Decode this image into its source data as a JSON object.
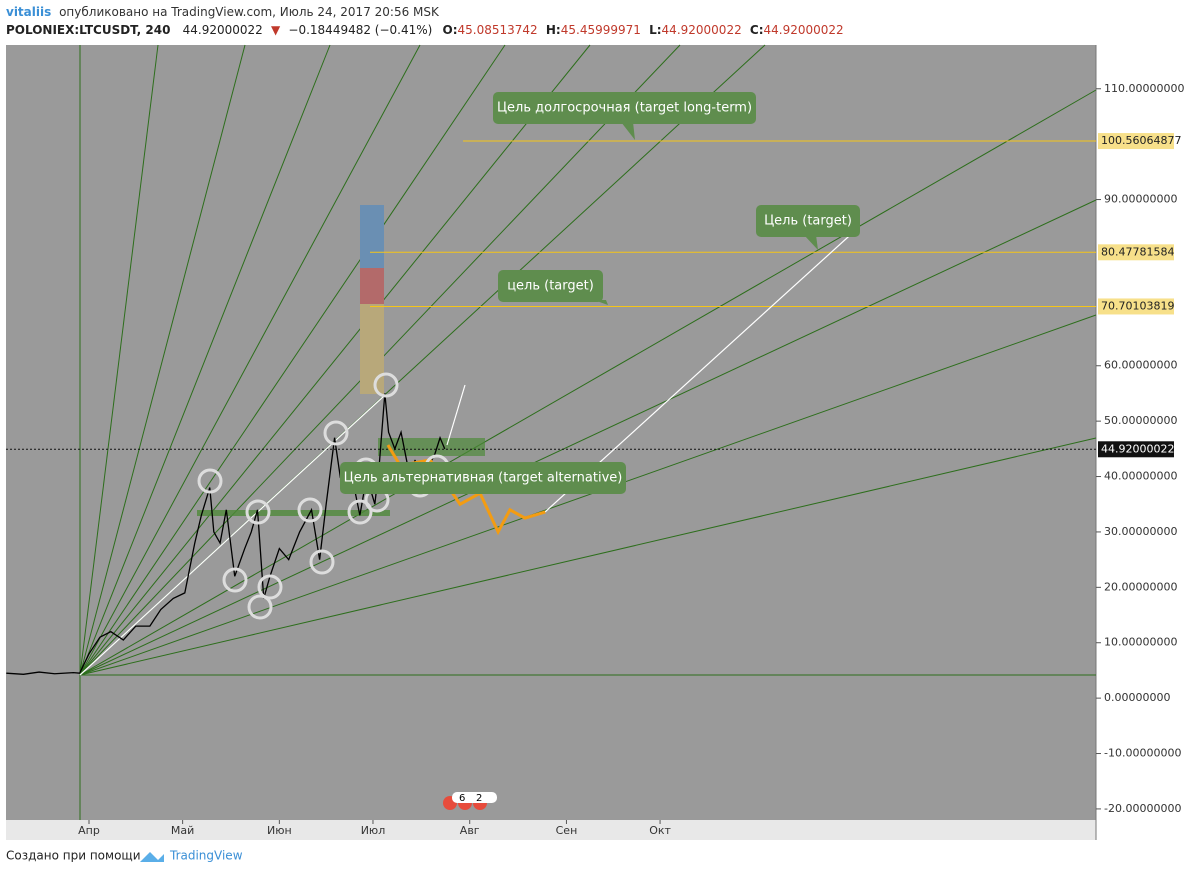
{
  "header": {
    "user": "vitaliis",
    "published": "опубликовано на TradingView.com, Июль 24, 2017 20:56 MSK",
    "symbol": "POLONIEX:LTCUSDT, 240",
    "last": "44.92000022",
    "change": "−0.18449482 (−0.41%)",
    "open_label": "O:",
    "open": "45.08513742",
    "high_label": "H:",
    "high": "45.45999971",
    "low_label": "L:",
    "low": "44.92000022",
    "close_label": "C:",
    "close": "44.92000022"
  },
  "chart_data": {
    "type": "line",
    "xlim": [
      64.4,
      413.7
    ],
    "ylim": [
      -22.0,
      117.9
    ],
    "xticks": [
      {
        "value": 91,
        "label": "Апр"
      },
      {
        "value": 121,
        "label": "Май"
      },
      {
        "value": 152,
        "label": "Июн"
      },
      {
        "value": 182,
        "label": "Июл"
      },
      {
        "value": 213,
        "label": "Авг"
      },
      {
        "value": 244,
        "label": "Сен"
      },
      {
        "value": 274,
        "label": "Окт"
      }
    ],
    "yticks": [
      {
        "value": -20,
        "label": "-20.00000000"
      },
      {
        "value": -10,
        "label": "-10.00000000"
      },
      {
        "value": 0,
        "label": "0.00000000"
      },
      {
        "value": 10,
        "label": "10.00000000"
      },
      {
        "value": 20,
        "label": "20.00000000"
      },
      {
        "value": 30,
        "label": "30.00000000"
      },
      {
        "value": 40,
        "label": "40.00000000"
      },
      {
        "value": 50,
        "label": "50.00000000"
      },
      {
        "value": 60,
        "label": "60.00000000"
      },
      {
        "value": 90,
        "label": "90.00000000"
      },
      {
        "value": 110,
        "label": "110.00000000"
      }
    ],
    "series": [
      {
        "color": "#000000",
        "x": [
          64.5,
          70,
          75,
          80,
          86,
          88,
          91,
          94.5,
          98,
          102,
          106,
          110.5,
          114,
          118,
          121.7,
          124.9,
          127,
          129.7,
          131,
          133,
          135,
          137.7,
          140.9,
          143,
          145,
          147,
          149,
          152,
          155,
          158.5,
          162.3,
          164.9,
          167,
          169.7,
          171.5,
          173.9,
          176,
          177.8,
          180,
          182.6,
          184,
          185.8,
          187,
          189,
          191,
          193.8,
          195.5,
          197,
          199,
          201.8,
          203.5,
          205
        ],
        "values": [
          4.5,
          4.3,
          4.7,
          4.4,
          4.6,
          4.5,
          8,
          11,
          12,
          10.5,
          13,
          13,
          16,
          18,
          19,
          28,
          33,
          38,
          30,
          28,
          34,
          22,
          27,
          30,
          34,
          18,
          22,
          27,
          25,
          30,
          34,
          25,
          35,
          47,
          40,
          42,
          38,
          33,
          40,
          35,
          42,
          55,
          48,
          45,
          48,
          40,
          43,
          37,
          41,
          44,
          47,
          45
        ]
      },
      {
        "color": "#f39c12",
        "x": [
          186.8,
          190.7,
          200.3,
          205.1,
          209.9,
          216.3,
          222.1,
          225.9,
          230.7,
          237.2
        ],
        "values": [
          45.7,
          42,
          43,
          39,
          35,
          37,
          30,
          34,
          32.5,
          33.6
        ]
      }
    ],
    "levels": [
      100.56064877,
      80.47781584,
      70.70103819
    ],
    "last_price": 44.92000022,
    "annotations": [
      "Цель долгосрочная (target long-term)",
      "Цель (target)",
      "цель (target)",
      "Цель альтернативная (target alternative)"
    ]
  },
  "badge": [
    "6",
    "2"
  ],
  "footer": {
    "credit": "Создано при помощи",
    "brand": "TradingView"
  }
}
